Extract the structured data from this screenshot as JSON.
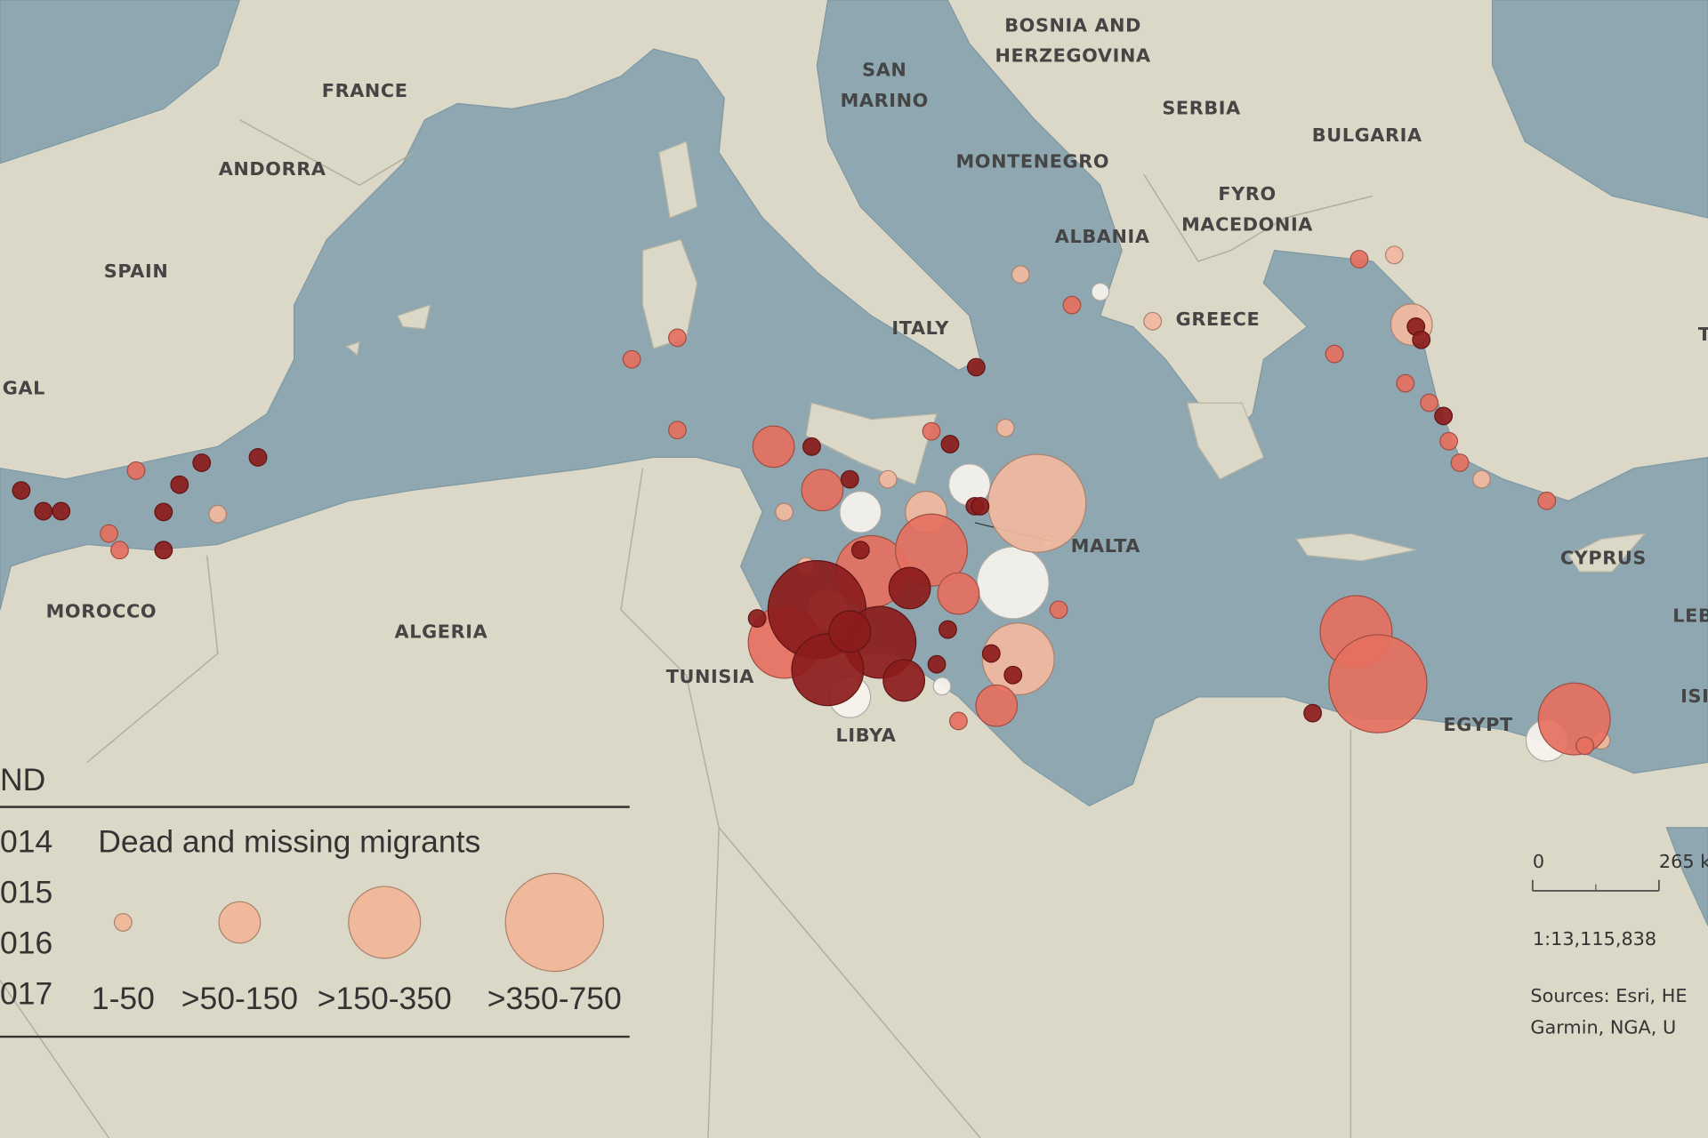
{
  "labels": [
    {
      "lines": [
        "FRANCE"
      ]
    },
    {
      "lines": [
        "ANDORRA"
      ]
    },
    {
      "lines": [
        "SPAIN"
      ]
    },
    {
      "lines": [
        "GAL"
      ]
    },
    {
      "lines": [
        "MOROCCO"
      ]
    },
    {
      "lines": [
        "ALGERIA"
      ]
    },
    {
      "lines": [
        "TUNISIA"
      ]
    },
    {
      "lines": [
        "LIBYA"
      ]
    },
    {
      "lines": [
        "MALTA"
      ]
    },
    {
      "lines": [
        "ITALY"
      ]
    },
    {
      "lines": [
        "SAN",
        "MARINO"
      ]
    },
    {
      "lines": [
        "BOSNIA AND",
        "HERZEGOVINA"
      ]
    },
    {
      "lines": [
        "SERBIA"
      ]
    },
    {
      "lines": [
        "BULGARIA"
      ]
    },
    {
      "lines": [
        "MONTENEGRO"
      ]
    },
    {
      "lines": [
        "FYRO",
        "MACEDONIA"
      ]
    },
    {
      "lines": [
        "ALBANIA"
      ]
    },
    {
      "lines": [
        "GREECE"
      ]
    },
    {
      "lines": [
        "CYPRUS"
      ]
    },
    {
      "lines": [
        "EGYPT"
      ]
    },
    {
      "lines": [
        "T"
      ]
    },
    {
      "lines": [
        "LEB"
      ]
    },
    {
      "lines": [
        "ISI"
      ]
    }
  ],
  "legend": {
    "title": "ND",
    "size_title": "Dead and missing migrants",
    "sizes": [
      {
        "label": "1-50",
        "max": 50
      },
      {
        "label": ">50-150",
        "max": 150
      },
      {
        "label": ">150-350",
        "max": 350
      },
      {
        "label": ">350-750",
        "max": 750
      }
    ],
    "size_color": "#f1b99c"
  },
  "series": [
    {
      "name": "014",
      "color": "#f7f4ee",
      "incidents": [
        {
          "lon": 19.34,
          "lat": 41.9,
          "dead": 20
        },
        {
          "lon": 29.41,
          "lat": 31.06,
          "dead": 100
        },
        {
          "lon": 17.37,
          "lat": 34.87,
          "dead": 250
        },
        {
          "lon": 16.39,
          "lat": 37.24,
          "dead": 100
        },
        {
          "lon": 13.93,
          "lat": 36.58,
          "dead": 100
        },
        {
          "lon": 15.77,
          "lat": 32.37,
          "dead": 20
        },
        {
          "lon": 13.69,
          "lat": 32.11,
          "dead": 100
        }
      ]
    },
    {
      "name": "015",
      "color": "#f2b9a0",
      "incidents": [
        {
          "lon": -0.57,
          "lat": 36.53,
          "dead": 20
        },
        {
          "lon": 17.2,
          "lat": 38.61,
          "dead": 20
        },
        {
          "lon": 17.91,
          "lat": 36.79,
          "dead": 500
        },
        {
          "lon": 17.54,
          "lat": 42.32,
          "dead": 20
        },
        {
          "lon": 20.52,
          "lat": 41.19,
          "dead": 20
        },
        {
          "lon": 25.97,
          "lat": 42.79,
          "dead": 20
        },
        {
          "lon": 26.36,
          "lat": 41.11,
          "dead": 100
        },
        {
          "lon": 27.94,
          "lat": 37.37,
          "dead": 20
        },
        {
          "lon": 30.64,
          "lat": 31.06,
          "dead": 20
        },
        {
          "lon": 17.49,
          "lat": 33.03,
          "dead": 250
        },
        {
          "lon": 13.19,
          "lat": 34.22,
          "dead": 100
        },
        {
          "lon": 14.55,
          "lat": 37.37,
          "dead": 20
        },
        {
          "lon": 15.41,
          "lat": 36.58,
          "dead": 100
        },
        {
          "lon": 12.21,
          "lat": 36.58,
          "dead": 20
        },
        {
          "lon": 12.7,
          "lat": 35.27,
          "dead": 20
        }
      ]
    },
    {
      "name": "016",
      "color": "#e5705f",
      "incidents": [
        {
          "lon": -3.02,
          "lat": 36.06,
          "dead": 20
        },
        {
          "lon": -2.41,
          "lat": 37.58,
          "dead": 20
        },
        {
          "lon": -2.78,
          "lat": 35.66,
          "dead": 20
        },
        {
          "lon": 8.77,
          "lat": 40.27,
          "dead": 20
        },
        {
          "lon": 9.8,
          "lat": 40.79,
          "dead": 20
        },
        {
          "lon": 9.8,
          "lat": 38.56,
          "dead": 20
        },
        {
          "lon": 11.97,
          "lat": 38.16,
          "dead": 100
        },
        {
          "lon": 15.53,
          "lat": 38.53,
          "dead": 20
        },
        {
          "lon": 18.7,
          "lat": 41.58,
          "dead": 20
        },
        {
          "lon": 25.18,
          "lat": 42.69,
          "dead": 20
        },
        {
          "lon": 26.22,
          "lat": 39.69,
          "dead": 20
        },
        {
          "lon": 27.2,
          "lat": 38.29,
          "dead": 20
        },
        {
          "lon": 27.45,
          "lat": 37.77,
          "dead": 20
        },
        {
          "lon": 26.76,
          "lat": 39.22,
          "dead": 20
        },
        {
          "lon": 24.62,
          "lat": 40.4,
          "dead": 20
        },
        {
          "lon": 29.41,
          "lat": 36.85,
          "dead": 20
        },
        {
          "lon": 25.11,
          "lat": 33.69,
          "dead": 250
        },
        {
          "lon": 25.6,
          "lat": 32.43,
          "dead": 500
        },
        {
          "lon": 30.03,
          "lat": 31.58,
          "dead": 250
        },
        {
          "lon": 30.27,
          "lat": 30.93,
          "dead": 20
        },
        {
          "lon": 12.21,
          "lat": 33.43,
          "dead": 250
        },
        {
          "lon": 14.18,
          "lat": 35.14,
          "dead": 250
        },
        {
          "lon": 15.53,
          "lat": 35.66,
          "dead": 250
        },
        {
          "lon": 13.07,
          "lat": 37.11,
          "dead": 100
        },
        {
          "lon": 16.14,
          "lat": 34.61,
          "dead": 100
        },
        {
          "lon": 17.0,
          "lat": 31.9,
          "dead": 100
        },
        {
          "lon": 16.14,
          "lat": 31.53,
          "dead": 20
        },
        {
          "lon": 18.4,
          "lat": 34.22,
          "dead": 20
        }
      ]
    },
    {
      "name": "017",
      "color": "#8c1c1c",
      "incidents": [
        {
          "lon": -5.0,
          "lat": 37.1,
          "dead": 20
        },
        {
          "lon": -4.5,
          "lat": 36.6,
          "dead": 20
        },
        {
          "lon": -4.1,
          "lat": 36.6,
          "dead": 20
        },
        {
          "lon": -1.79,
          "lat": 36.58,
          "dead": 20
        },
        {
          "lon": -1.43,
          "lat": 37.24,
          "dead": 20
        },
        {
          "lon": -0.93,
          "lat": 37.77,
          "dead": 20
        },
        {
          "lon": 0.34,
          "lat": 37.9,
          "dead": 20
        },
        {
          "lon": -1.79,
          "lat": 35.66,
          "dead": 20
        },
        {
          "lon": 12.83,
          "lat": 38.16,
          "dead": 20
        },
        {
          "lon": 16.54,
          "lat": 40.08,
          "dead": 20
        },
        {
          "lon": 15.95,
          "lat": 38.22,
          "dead": 20
        },
        {
          "lon": 26.46,
          "lat": 41.06,
          "dead": 20
        },
        {
          "lon": 26.58,
          "lat": 40.74,
          "dead": 20
        },
        {
          "lon": 27.08,
          "lat": 38.9,
          "dead": 20
        },
        {
          "lon": 24.13,
          "lat": 31.72,
          "dead": 20
        },
        {
          "lon": 12.95,
          "lat": 34.22,
          "dead": 500
        },
        {
          "lon": 14.37,
          "lat": 33.43,
          "dead": 250
        },
        {
          "lon": 13.19,
          "lat": 32.77,
          "dead": 250
        },
        {
          "lon": 15.04,
          "lat": 34.74,
          "dead": 100
        },
        {
          "lon": 14.91,
          "lat": 32.51,
          "dead": 100
        },
        {
          "lon": 16.51,
          "lat": 36.72,
          "dead": 20
        },
        {
          "lon": 16.63,
          "lat": 36.72,
          "dead": 20
        },
        {
          "lon": 11.6,
          "lat": 34.01,
          "dead": 20
        },
        {
          "lon": 16.88,
          "lat": 33.16,
          "dead": 20
        },
        {
          "lon": 15.9,
          "lat": 33.74,
          "dead": 20
        },
        {
          "lon": 13.69,
          "lat": 33.69,
          "dead": 100
        },
        {
          "lon": 17.37,
          "lat": 32.64,
          "dead": 20
        },
        {
          "lon": 13.69,
          "lat": 37.37,
          "dead": 20
        },
        {
          "lon": 15.65,
          "lat": 32.9,
          "dead": 20
        },
        {
          "lon": 13.93,
          "lat": 35.66,
          "dead": 20
        }
      ]
    }
  ],
  "scale": {
    "ticks": [
      {
        "value": 0,
        "label": "0"
      },
      {
        "value": 265,
        "label": "265 k"
      }
    ],
    "ratio": "1:13,115,838"
  },
  "sources": [
    "Sources: Esri, HE",
    "Garmin, NGA, U"
  ]
}
